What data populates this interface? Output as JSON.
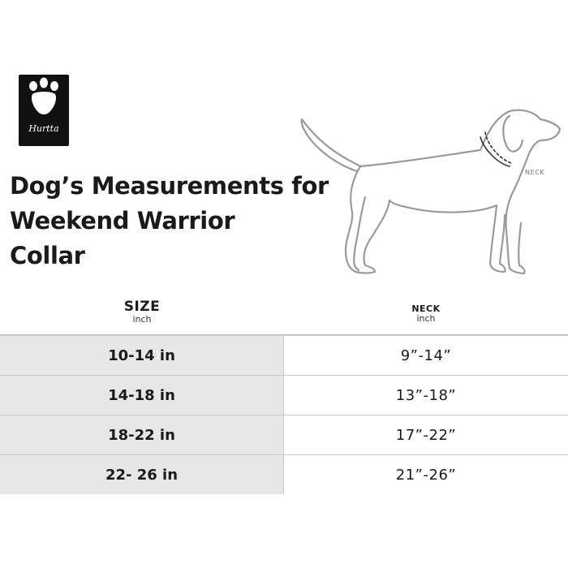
{
  "logo": {
    "text": "Hurtta"
  },
  "title": {
    "line1": "Dog’s Measurements for",
    "line2": "Weekend Warrior",
    "line3": "Collar"
  },
  "diagram": {
    "neck_label": "NECK"
  },
  "table": {
    "headers": [
      {
        "label": "SIZE",
        "unit": "inch"
      },
      {
        "label": "NECK",
        "unit": "inch"
      }
    ],
    "rows": [
      {
        "size": "10-14 in",
        "neck": "9”-14”"
      },
      {
        "size": "14-18 in",
        "neck": "13”-18”"
      },
      {
        "size": "18-22 in",
        "neck": "17”-22”"
      },
      {
        "size": "22- 26 in",
        "neck": "21”-26”"
      }
    ]
  },
  "colors": {
    "size_column_bg": "#e6e7e8",
    "logo_bg": "#111111",
    "dog_outline": "#9a9a9a"
  }
}
